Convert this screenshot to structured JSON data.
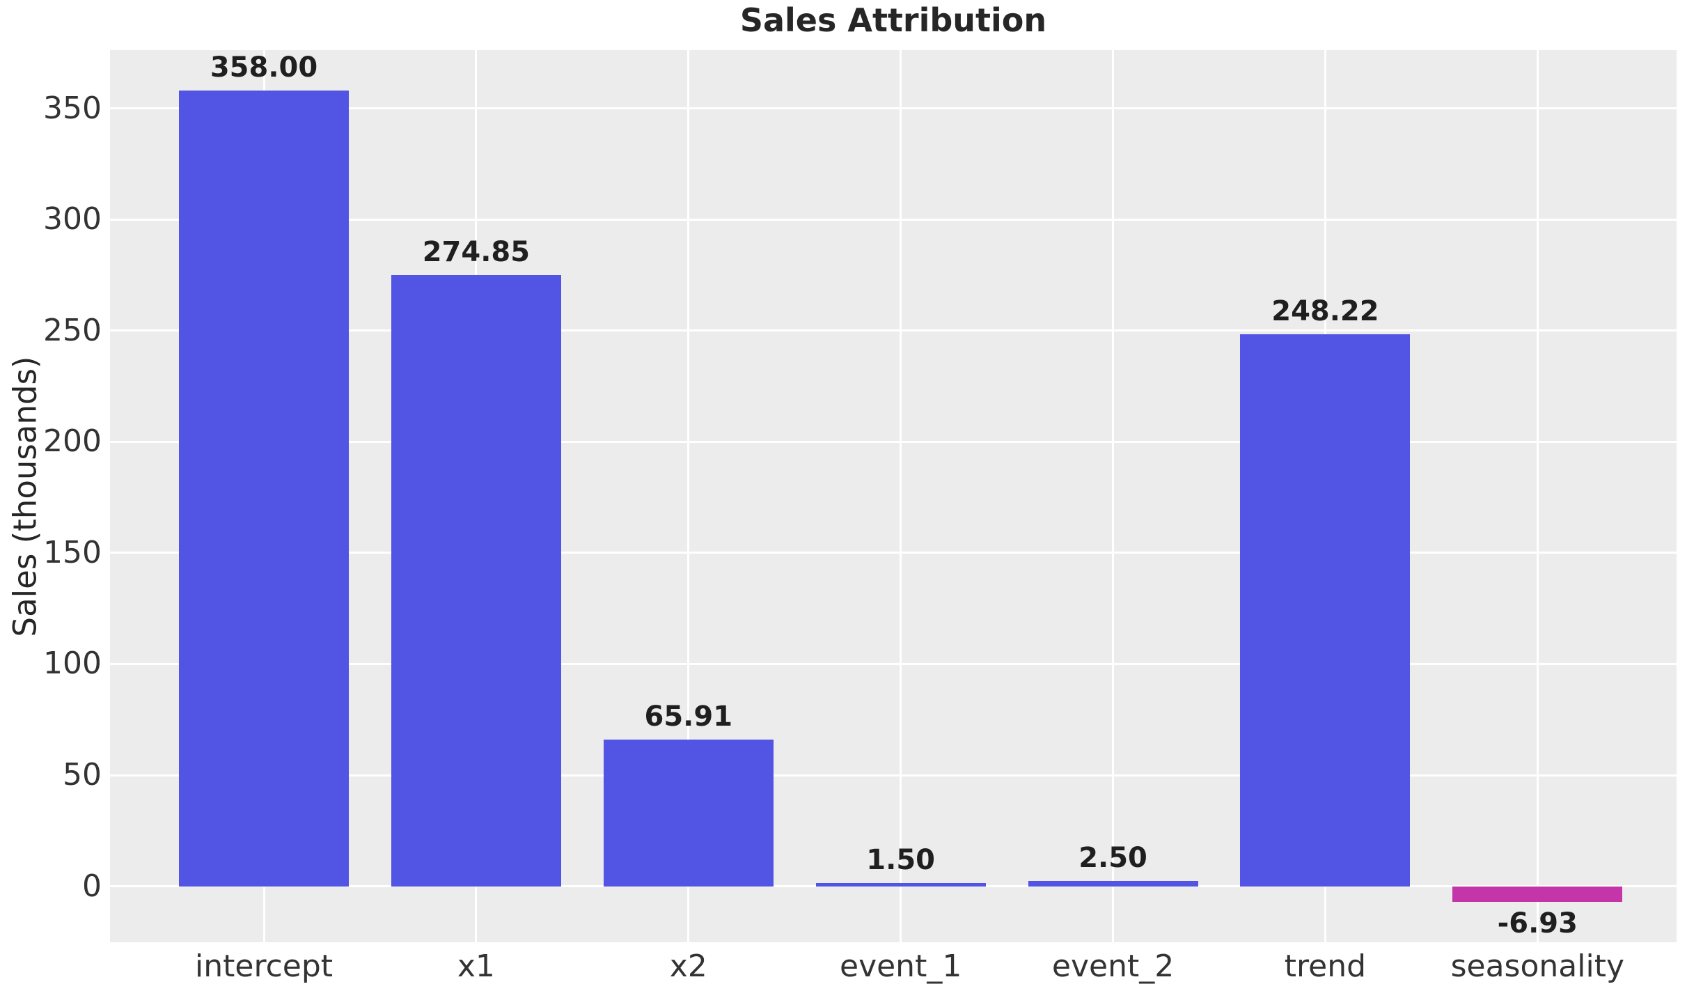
{
  "title": "Sales Attribution",
  "axes": {
    "ylabel": "Sales (thousands)"
  },
  "chart_data": {
    "type": "bar",
    "title": "Sales Attribution",
    "xlabel": "",
    "ylabel": "Sales (thousands)",
    "categories": [
      "intercept",
      "x1",
      "x2",
      "event_1",
      "event_2",
      "trend",
      "seasonality"
    ],
    "values": [
      358.0,
      274.85,
      65.91,
      1.5,
      2.5,
      248.22,
      -6.93
    ],
    "bar_labels": [
      "358.00",
      "274.85",
      "65.91",
      "1.50",
      "2.50",
      "248.22",
      "-6.93"
    ],
    "ylim": [
      -25.2,
      376.2
    ],
    "yticks": [
      0,
      50,
      100,
      150,
      200,
      250,
      300,
      350
    ],
    "grid": true,
    "legend": false,
    "colors": {
      "positive_bar": "#5254e3",
      "negative_bar": "#c335a9",
      "plot_background": "#ececec",
      "gridline": "#ffffff",
      "title_text": "#262626",
      "tick_text": "#333333",
      "value_text": "#1f1f1f"
    }
  }
}
